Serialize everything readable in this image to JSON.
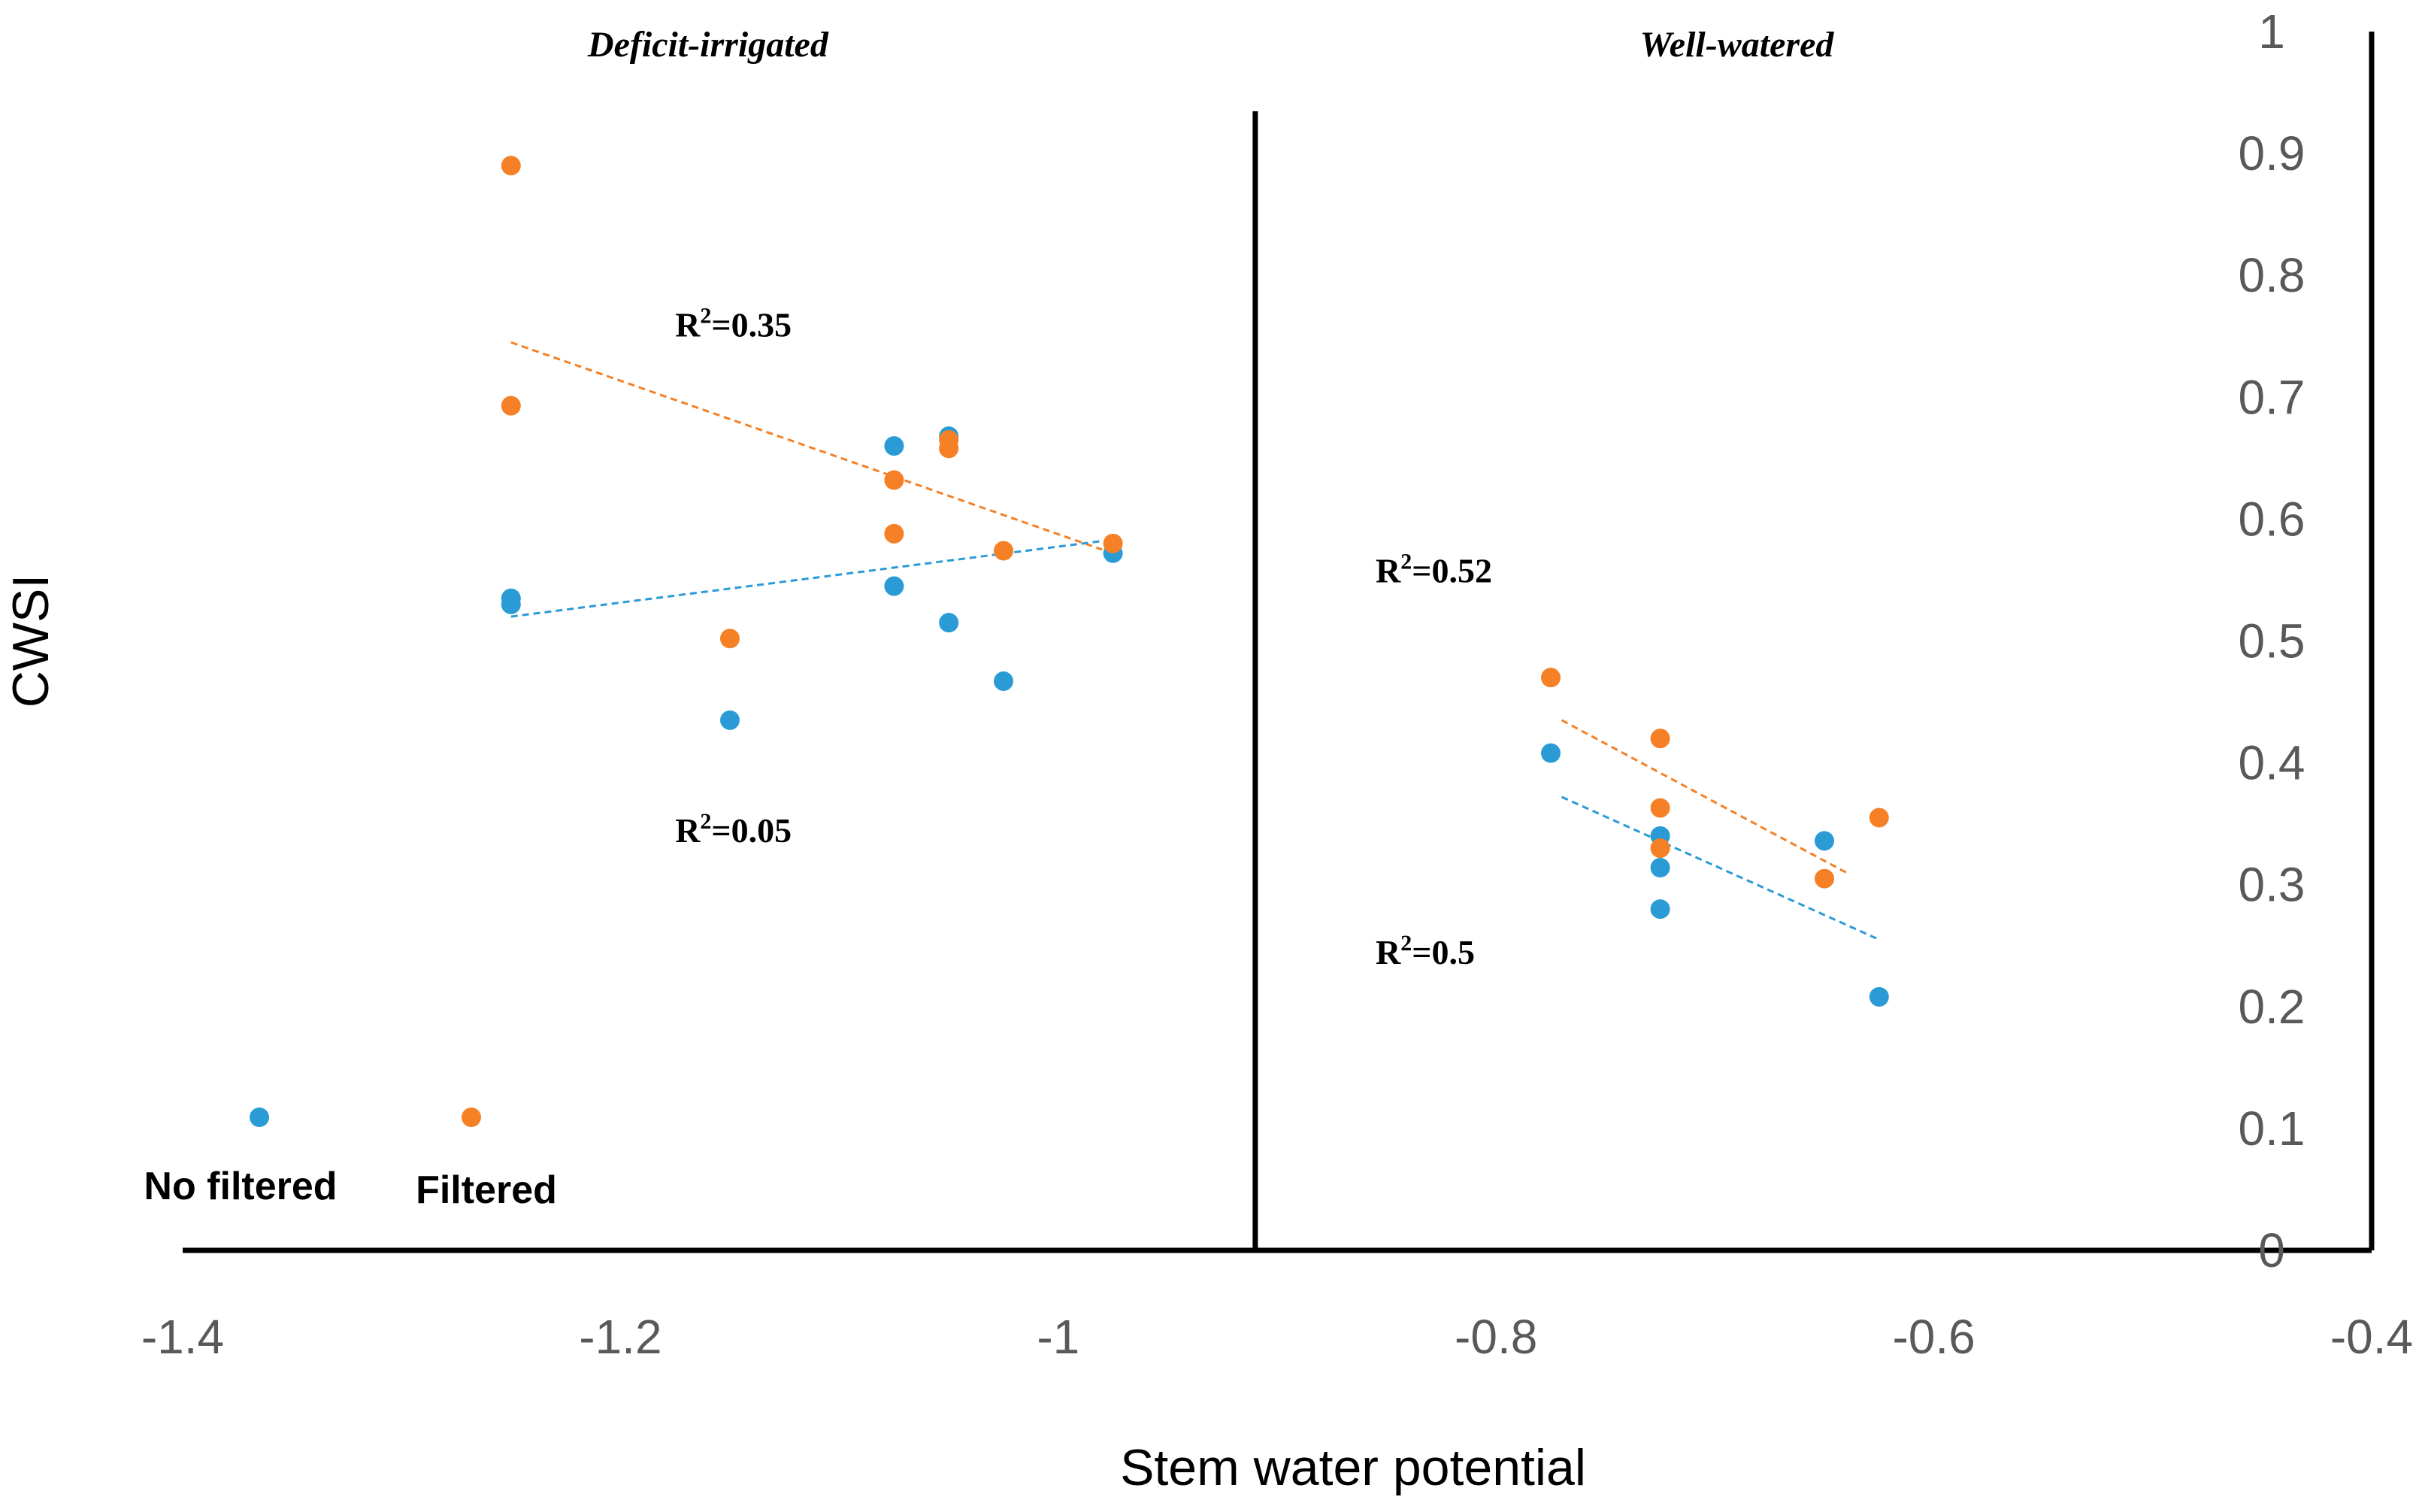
{
  "chart_data": {
    "type": "scatter",
    "title": "",
    "xlabel": "Stem water potential",
    "ylabel": "CWSI",
    "xlim": [
      -1.4,
      -0.4
    ],
    "ylim": [
      0,
      1
    ],
    "x_ticks": [
      "-1.4",
      "-1.2",
      "-1",
      "-0.8",
      "-0.6",
      "-0.4"
    ],
    "y_ticks": [
      "0",
      "0.1",
      "0.2",
      "0.3",
      "0.4",
      "0.5",
      "0.6",
      "0.7",
      "0.8",
      "0.9",
      "1"
    ],
    "divider_x": -0.91,
    "panels": [
      {
        "label": "Deficit-irrigated",
        "x_center": -1.16
      },
      {
        "label": "Well-watered",
        "x_center": -0.69
      }
    ],
    "series": [
      {
        "name": "No filtered",
        "color": "#2b9bd6",
        "points": [
          [
            -1.25,
            0.535
          ],
          [
            -1.25,
            0.53
          ],
          [
            -1.15,
            0.435
          ],
          [
            -1.075,
            0.66
          ],
          [
            -1.075,
            0.545
          ],
          [
            -1.05,
            0.668
          ],
          [
            -1.05,
            0.515
          ],
          [
            -1.025,
            0.467
          ],
          [
            -0.975,
            0.572
          ],
          [
            -0.775,
            0.408
          ],
          [
            -0.725,
            0.34
          ],
          [
            -0.725,
            0.314
          ],
          [
            -0.725,
            0.28
          ],
          [
            -0.65,
            0.336
          ],
          [
            -0.625,
            0.208
          ]
        ]
      },
      {
        "name": "Filtered",
        "color": "#f58025",
        "points": [
          [
            -1.25,
            0.89
          ],
          [
            -1.25,
            0.693
          ],
          [
            -1.15,
            0.502
          ],
          [
            -1.075,
            0.632
          ],
          [
            -1.075,
            0.588
          ],
          [
            -1.05,
            0.665
          ],
          [
            -1.05,
            0.658
          ],
          [
            -1.025,
            0.574
          ],
          [
            -0.975,
            0.58
          ],
          [
            -0.775,
            0.47
          ],
          [
            -0.725,
            0.42
          ],
          [
            -0.725,
            0.363
          ],
          [
            -0.725,
            0.33
          ],
          [
            -0.65,
            0.305
          ],
          [
            -0.625,
            0.355
          ]
        ]
      }
    ],
    "trendlines": [
      {
        "series": "Filtered",
        "group": "Deficit-irrigated",
        "x": [
          -1.25,
          -0.98
        ],
        "y": [
          0.745,
          0.575
        ],
        "r2_text": "R",
        "r2_rest": "=0.35",
        "label_at": [
          -1.175,
          0.75
        ]
      },
      {
        "series": "No filtered",
        "group": "Deficit-irrigated",
        "x": [
          -1.25,
          -0.98
        ],
        "y": [
          0.52,
          0.582
        ],
        "r2_text": "R",
        "r2_rest": "=0.05",
        "label_at": [
          -1.175,
          0.335
        ]
      },
      {
        "series": "Filtered",
        "group": "Well-watered",
        "x": [
          -0.77,
          -0.64
        ],
        "y": [
          0.435,
          0.31
        ],
        "r2_text": "R",
        "r2_rest": "=0.52",
        "label_at": [
          -0.855,
          0.548
        ]
      },
      {
        "series": "No filtered",
        "group": "Well-watered",
        "x": [
          -0.77,
          -0.625
        ],
        "y": [
          0.372,
          0.255
        ],
        "r2_text": "R",
        "r2_rest": "=0.5",
        "label_at": [
          -0.855,
          0.235
        ]
      }
    ],
    "legend": [
      {
        "name": "No filtered",
        "color": "#2b9bd6"
      },
      {
        "name": "Filtered",
        "color": "#f58025"
      }
    ]
  }
}
